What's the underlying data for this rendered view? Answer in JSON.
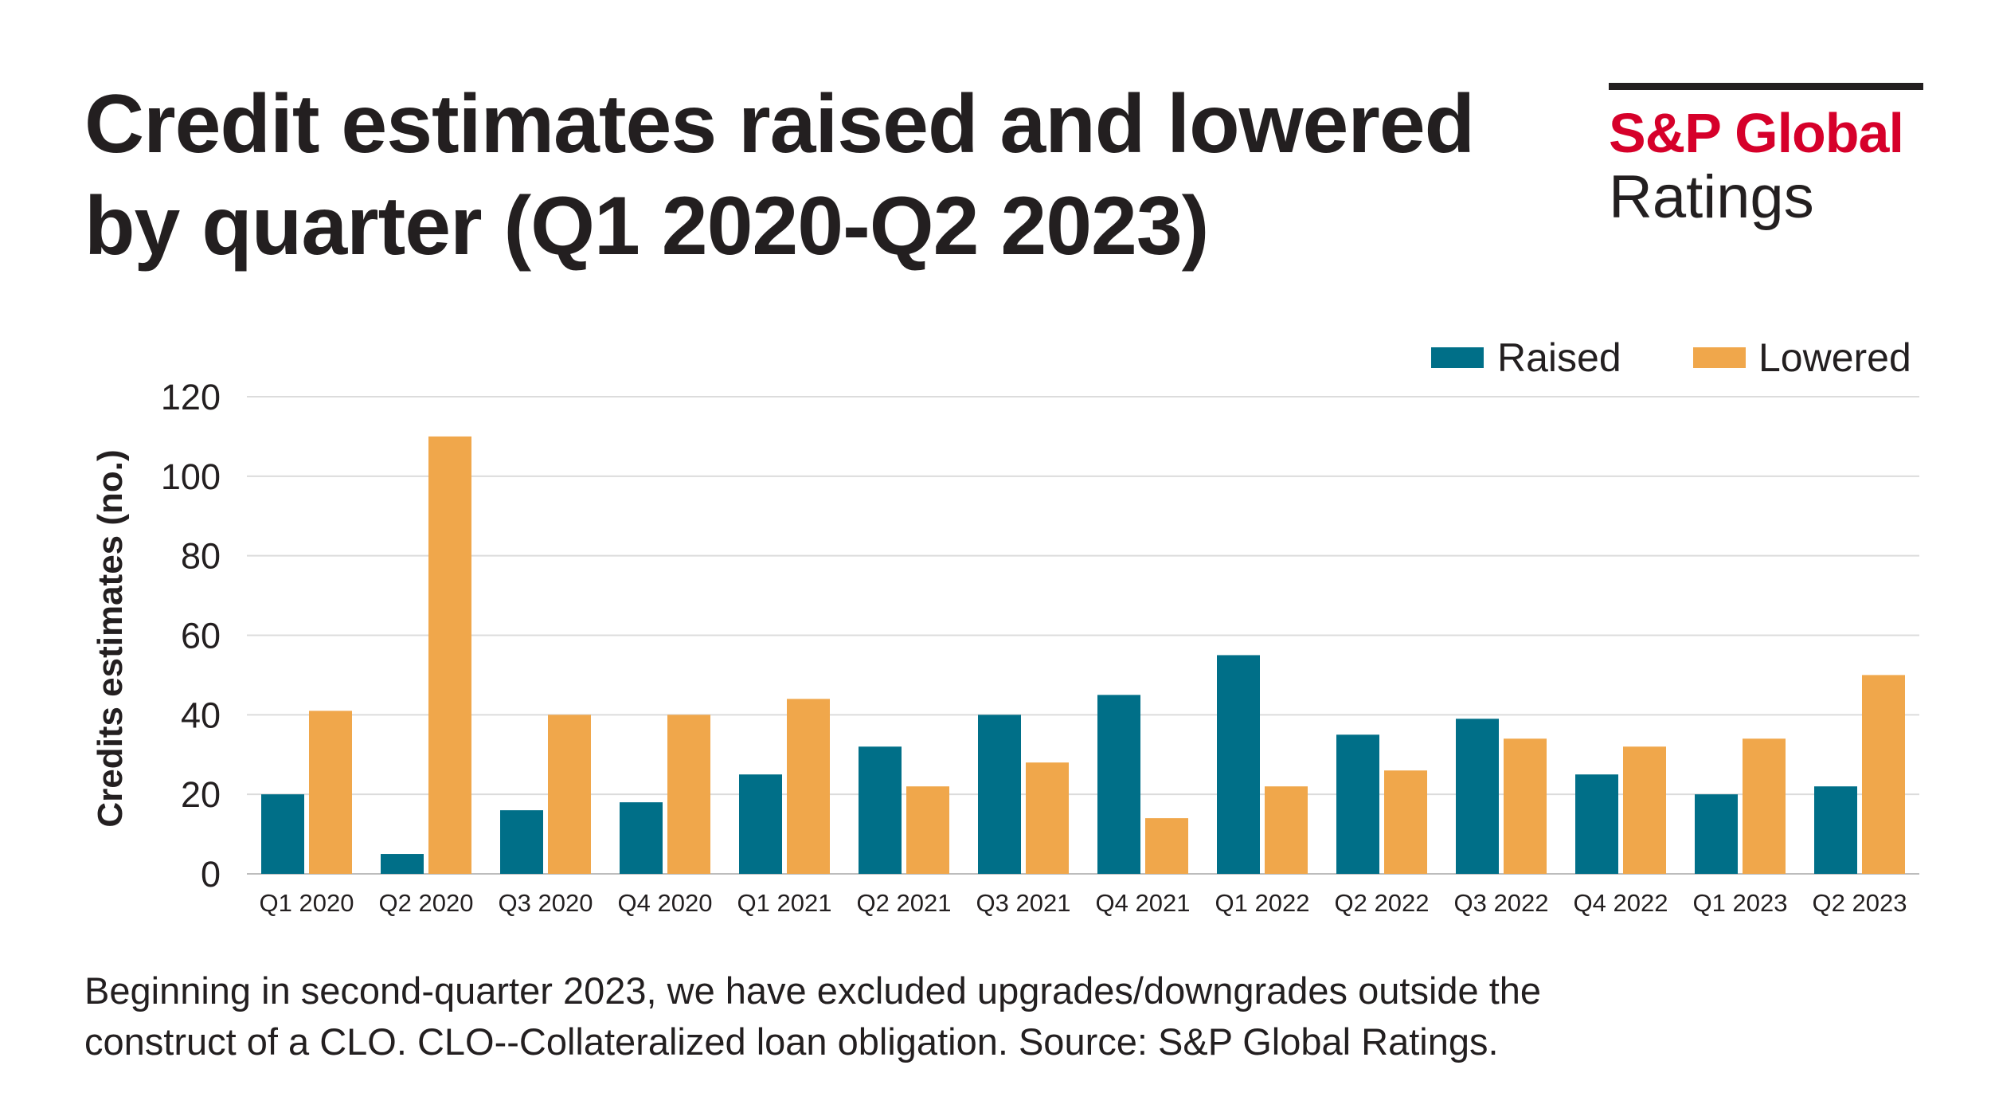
{
  "title": {
    "line1": "Credit estimates raised and lowered",
    "line2": "by quarter (Q1 2020-Q2 2023)"
  },
  "logo": {
    "name": "S&P Global",
    "sub": "Ratings"
  },
  "footnote": {
    "line1": "Beginning in second-quarter 2023, we have excluded upgrades/downgrades outside the",
    "line2": "construct of a CLO. CLO--Collateralized loan obligation. Source: S&P Global Ratings."
  },
  "colors": {
    "raised": "#006f88",
    "lowered": "#f0a74b",
    "grid": "#dcdcdc",
    "text": "#231f20",
    "brand": "#d6002a"
  },
  "chart_data": {
    "type": "bar",
    "title": "Credit estimates raised and lowered by quarter (Q1 2020-Q2 2023)",
    "ylabel": "Credits estimates (no.)",
    "xlabel": "",
    "ylim": [
      0,
      120
    ],
    "yticks": [
      0,
      20,
      40,
      60,
      80,
      100,
      120
    ],
    "grid": true,
    "legend_position": "top-right",
    "categories": [
      "Q1 2020",
      "Q2 2020",
      "Q3 2020",
      "Q4 2020",
      "Q1 2021",
      "Q2 2021",
      "Q3 2021",
      "Q4 2021",
      "Q1 2022",
      "Q2 2022",
      "Q3 2022",
      "Q4 2022",
      "Q1 2023",
      "Q2 2023"
    ],
    "series": [
      {
        "name": "Raised",
        "color": "#006f88",
        "values": [
          20,
          5,
          16,
          18,
          25,
          32,
          40,
          45,
          55,
          35,
          39,
          25,
          20,
          22
        ]
      },
      {
        "name": "Lowered",
        "color": "#f0a74b",
        "values": [
          41,
          110,
          40,
          40,
          44,
          22,
          28,
          14,
          22,
          26,
          34,
          32,
          34,
          50
        ]
      }
    ]
  }
}
